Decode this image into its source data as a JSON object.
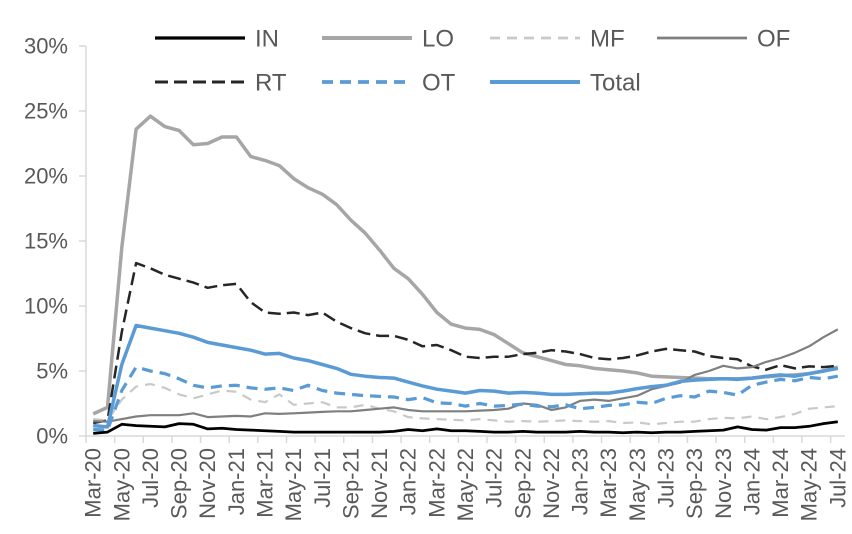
{
  "chart_data": {
    "type": "line",
    "title": "",
    "grid": false,
    "background": "#ffffff",
    "y_axis": {
      "min": 0,
      "max": 30,
      "tick_values": [
        0,
        5,
        10,
        15,
        20,
        25,
        30
      ],
      "tick_labels": [
        "0%",
        "5%",
        "10%",
        "15%",
        "20%",
        "25%",
        "30%"
      ]
    },
    "x_axis": {
      "label_every": 2,
      "categories": [
        "Mar-20",
        "Apr-20",
        "May-20",
        "Jun-20",
        "Jul-20",
        "Aug-20",
        "Sep-20",
        "Oct-20",
        "Nov-20",
        "Dec-20",
        "Jan-21",
        "Feb-21",
        "Mar-21",
        "Apr-21",
        "May-21",
        "Jun-21",
        "Jul-21",
        "Aug-21",
        "Sep-21",
        "Oct-21",
        "Nov-21",
        "Dec-21",
        "Jan-22",
        "Feb-22",
        "Mar-22",
        "Apr-22",
        "May-22",
        "Jun-22",
        "Jul-22",
        "Aug-22",
        "Sep-22",
        "Oct-22",
        "Nov-22",
        "Dec-22",
        "Jan-23",
        "Feb-23",
        "Mar-23",
        "Apr-23",
        "May-23",
        "Jun-23",
        "Jul-23",
        "Aug-23",
        "Sep-23",
        "Oct-23",
        "Nov-23",
        "Dec-23",
        "Jan-24",
        "Feb-24",
        "Mar-24",
        "Apr-24",
        "May-24",
        "Jun-24",
        "Jul-24"
      ],
      "shown_tick_labels": [
        "Mar-20",
        "May-20",
        "Jul-20",
        "Sep-20",
        "Nov-20",
        "Jan-21",
        "Mar-21",
        "May-21",
        "Jul-21",
        "Sep-21",
        "Nov-21",
        "Jan-22",
        "Mar-22",
        "May-22",
        "Jul-22",
        "Sep-22",
        "Nov-22",
        "Jan-23",
        "Mar-23",
        "May-23",
        "Jul-23",
        "Sep-23",
        "Nov-23",
        "Jan-24",
        "Mar-24",
        "May-24",
        "Jul-24"
      ]
    },
    "series": [
      {
        "name": "IN",
        "color": "#000000",
        "width": 2.75,
        "dash": null,
        "values": [
          0.2,
          0.3,
          0.9,
          0.8,
          0.75,
          0.7,
          0.95,
          0.9,
          0.55,
          0.6,
          0.5,
          0.45,
          0.4,
          0.35,
          0.3,
          0.3,
          0.3,
          0.3,
          0.3,
          0.3,
          0.3,
          0.35,
          0.5,
          0.4,
          0.55,
          0.4,
          0.4,
          0.35,
          0.3,
          0.3,
          0.35,
          0.3,
          0.3,
          0.3,
          0.35,
          0.3,
          0.3,
          0.25,
          0.3,
          0.25,
          0.3,
          0.3,
          0.35,
          0.4,
          0.45,
          0.7,
          0.5,
          0.45,
          0.65,
          0.65,
          0.75,
          0.95,
          1.1
        ]
      },
      {
        "name": "LO",
        "color": "#a6a6a6",
        "width": 3.5,
        "dash": null,
        "values": [
          1.7,
          2.2,
          14.5,
          23.6,
          24.6,
          23.8,
          23.5,
          22.4,
          22.5,
          23.0,
          23.0,
          21.5,
          21.2,
          20.8,
          19.8,
          19.1,
          18.6,
          17.8,
          16.6,
          15.6,
          14.3,
          12.9,
          12.1,
          10.9,
          9.5,
          8.6,
          8.3,
          8.2,
          7.8,
          7.1,
          6.4,
          6.1,
          5.8,
          5.5,
          5.4,
          5.2,
          5.1,
          5.0,
          4.85,
          4.6,
          4.55,
          4.5,
          4.45,
          4.4,
          4.4,
          4.4,
          4.45,
          4.55,
          4.65,
          4.7,
          4.8,
          5.0,
          5.3
        ]
      },
      {
        "name": "MF",
        "color": "#c9c9c9",
        "width": 2.2,
        "dash": "10 7",
        "values": [
          1.3,
          1.2,
          2.8,
          3.8,
          4.0,
          3.7,
          3.2,
          2.9,
          3.2,
          3.5,
          3.4,
          2.8,
          2.6,
          3.2,
          2.4,
          2.5,
          2.6,
          2.2,
          2.2,
          2.4,
          2.1,
          1.9,
          1.45,
          1.35,
          1.3,
          1.25,
          1.2,
          1.3,
          1.2,
          1.1,
          1.15,
          1.1,
          1.15,
          1.2,
          1.15,
          1.1,
          1.15,
          1.0,
          1.05,
          0.9,
          1.0,
          1.1,
          1.1,
          1.3,
          1.4,
          1.35,
          1.5,
          1.3,
          1.45,
          1.7,
          2.1,
          2.2,
          2.3
        ]
      },
      {
        "name": "OF",
        "color": "#7f7f7f",
        "width": 2.2,
        "dash": null,
        "values": [
          1.15,
          1.1,
          1.3,
          1.5,
          1.6,
          1.6,
          1.6,
          1.75,
          1.45,
          1.5,
          1.55,
          1.5,
          1.75,
          1.7,
          1.75,
          1.8,
          1.85,
          1.9,
          1.9,
          2.0,
          2.1,
          2.2,
          2.0,
          1.9,
          1.9,
          1.9,
          1.9,
          1.95,
          2.0,
          2.1,
          2.5,
          2.4,
          2.0,
          2.2,
          2.7,
          2.8,
          2.7,
          2.9,
          3.1,
          3.6,
          3.85,
          4.1,
          4.7,
          5.0,
          5.4,
          5.2,
          5.3,
          5.7,
          6.0,
          6.4,
          6.9,
          7.6,
          8.2
        ]
      },
      {
        "name": "RT",
        "color": "#262626",
        "width": 2.5,
        "dash": "13 6",
        "values": [
          1.0,
          1.2,
          8.0,
          13.3,
          12.9,
          12.4,
          12.1,
          11.8,
          11.4,
          11.6,
          11.7,
          10.3,
          9.5,
          9.4,
          9.5,
          9.3,
          9.5,
          8.8,
          8.3,
          7.9,
          7.7,
          7.7,
          7.4,
          6.9,
          7.0,
          6.6,
          6.1,
          6.0,
          6.1,
          6.1,
          6.3,
          6.4,
          6.6,
          6.5,
          6.3,
          6.0,
          5.9,
          6.0,
          6.2,
          6.5,
          6.7,
          6.6,
          6.5,
          6.15,
          6.0,
          5.9,
          5.35,
          5.1,
          5.45,
          5.2,
          5.35,
          5.3,
          5.4
        ]
      },
      {
        "name": "OT",
        "color": "#5b9bd5",
        "width": 3.25,
        "dash": "11 7",
        "values": [
          0.5,
          0.45,
          3.5,
          5.3,
          5.0,
          4.8,
          4.4,
          3.9,
          3.7,
          3.85,
          3.9,
          3.7,
          3.6,
          3.7,
          3.5,
          3.9,
          3.5,
          3.3,
          3.2,
          3.1,
          3.05,
          3.0,
          2.8,
          2.95,
          2.55,
          2.5,
          2.3,
          2.5,
          2.3,
          2.35,
          2.45,
          2.3,
          2.25,
          2.4,
          2.1,
          2.2,
          2.35,
          2.4,
          2.6,
          2.5,
          2.9,
          3.1,
          3.0,
          3.45,
          3.35,
          3.15,
          3.9,
          4.15,
          4.35,
          4.25,
          4.5,
          4.4,
          4.6
        ]
      },
      {
        "name": "Total",
        "color": "#5b9bd5",
        "width": 3.5,
        "dash": null,
        "values": [
          0.8,
          0.7,
          5.5,
          8.5,
          8.3,
          8.1,
          7.9,
          7.6,
          7.2,
          7.0,
          6.8,
          6.6,
          6.3,
          6.35,
          6.0,
          5.8,
          5.5,
          5.2,
          4.75,
          4.6,
          4.5,
          4.45,
          4.15,
          3.85,
          3.6,
          3.45,
          3.3,
          3.5,
          3.45,
          3.3,
          3.35,
          3.3,
          3.2,
          3.2,
          3.25,
          3.3,
          3.3,
          3.45,
          3.65,
          3.8,
          3.9,
          4.2,
          4.3,
          4.35,
          4.4,
          4.35,
          4.45,
          4.6,
          4.7,
          4.6,
          4.8,
          5.0,
          5.2
        ]
      }
    ],
    "legend": {
      "position": "top",
      "rows": [
        [
          "IN",
          "LO",
          "MF",
          "OF"
        ],
        [
          "RT",
          "OT",
          "Total"
        ]
      ]
    },
    "draw_order": [
      "LO",
      "RT",
      "MF",
      "OF",
      "OT",
      "Total",
      "IN"
    ]
  },
  "colors": {
    "axis_text": "#595959",
    "axis_line": "#d9d9d9",
    "background": "#ffffff"
  }
}
